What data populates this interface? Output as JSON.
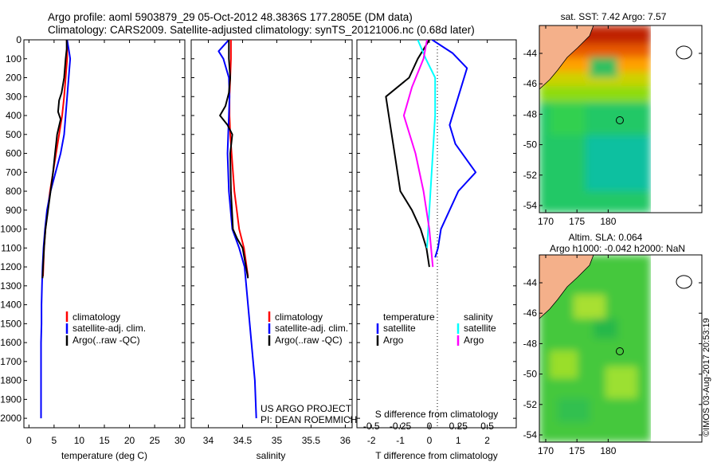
{
  "header": {
    "title_line1": "Argo profile: aoml 5903879_29 05-Oct-2012 48.3836S 177.2805E (DM data)",
    "title_line2": "Climatology: CARS2009. Satellite-adjusted climatology: synTS_20121006.nc (0.68d later)"
  },
  "colors": {
    "climatology": "#ff0000",
    "satellite": "#0000ff",
    "argo": "#000000",
    "argo_salinity_diff": "#ff00ff",
    "satellite_salinity_diff": "#00ffff",
    "land": "#f4b08a"
  },
  "chart_data": [
    {
      "type": "line",
      "name": "temperature-profile",
      "xlabel": "temperature (deg C)",
      "ylabel": "depth",
      "xlim": [
        -1,
        31
      ],
      "ylim": [
        2050,
        0
      ],
      "xticks": [
        0,
        5,
        10,
        15,
        20,
        25,
        30
      ],
      "yticks": [
        0,
        100,
        200,
        300,
        400,
        500,
        600,
        700,
        800,
        900,
        1000,
        1100,
        1200,
        1300,
        1400,
        1500,
        1600,
        1700,
        1800,
        1900,
        2000
      ],
      "legend": [
        "climatology",
        "satellite-adj. clim.",
        "Argo(..raw -QC)"
      ],
      "series": [
        {
          "name": "climatology",
          "color": "#ff0000",
          "x": [
            7.5,
            7.6,
            7.6,
            7.3,
            7.0,
            6.6,
            6.0,
            5.4,
            4.8,
            4.2,
            3.7,
            3.3,
            3.0,
            2.8
          ],
          "y": [
            0,
            50,
            100,
            200,
            300,
            400,
            500,
            600,
            700,
            800,
            900,
            1000,
            1100,
            1250
          ]
        },
        {
          "name": "satellite-adj. clim.",
          "color": "#0000ff",
          "x": [
            7.6,
            8.1,
            8.2,
            7.9,
            7.6,
            7.3,
            7.0,
            6.3,
            5.3,
            4.3,
            3.6,
            3.2,
            2.9,
            2.7,
            2.6,
            2.5,
            2.5,
            2.4,
            2.4,
            2.4,
            2.4,
            2.4
          ],
          "y": [
            0,
            80,
            100,
            200,
            300,
            400,
            500,
            600,
            700,
            800,
            900,
            1000,
            1100,
            1200,
            1300,
            1400,
            1500,
            1600,
            1700,
            1800,
            1900,
            2000
          ]
        },
        {
          "name": "Argo(..raw -QC)",
          "color": "#000000",
          "x": [
            7.5,
            7.5,
            7.3,
            7.0,
            6.5,
            6.0,
            5.8,
            6.3,
            5.6,
            5.2,
            4.8,
            4.3,
            3.8,
            3.3,
            3.0,
            2.8,
            2.7
          ],
          "y": [
            0,
            50,
            100,
            200,
            280,
            320,
            380,
            420,
            500,
            600,
            700,
            800,
            900,
            1000,
            1100,
            1200,
            1260
          ]
        }
      ]
    },
    {
      "type": "line",
      "name": "salinity-profile",
      "xlabel": "salinity",
      "xlim": [
        33.75,
        36.1
      ],
      "ylim": [
        2050,
        0
      ],
      "xticks": [
        34,
        34.5,
        35,
        35.5,
        36
      ],
      "xticklabels": [
        "34",
        "34.5",
        "35",
        "35.5",
        "36"
      ],
      "legend": [
        "climatology",
        "satellite-adj. clim.",
        "Argo(..raw -QC)"
      ],
      "annotation": [
        "US ARGO PROJECT",
        "PI: DEAN ROEMMICH"
      ],
      "series": [
        {
          "name": "climatology",
          "color": "#ff0000",
          "x": [
            34.33,
            34.33,
            34.32,
            34.31,
            34.31,
            34.32,
            34.34,
            34.38,
            34.45,
            34.52,
            34.58
          ],
          "y": [
            0,
            100,
            200,
            300,
            400,
            500,
            600,
            800,
            1000,
            1100,
            1250
          ]
        },
        {
          "name": "satellite-adj. clim.",
          "color": "#0000ff",
          "x": [
            34.3,
            34.15,
            34.22,
            34.3,
            34.31,
            34.3,
            34.28,
            34.3,
            34.35,
            34.45,
            34.53,
            34.58,
            34.63,
            34.68,
            34.7
          ],
          "y": [
            0,
            60,
            100,
            200,
            300,
            400,
            600,
            800,
            1000,
            1100,
            1200,
            1400,
            1600,
            1800,
            2000
          ]
        },
        {
          "name": "Argo(..raw -QC)",
          "color": "#000000",
          "x": [
            34.3,
            34.3,
            34.32,
            34.3,
            34.25,
            34.17,
            34.28,
            34.35,
            34.32,
            34.33,
            34.36,
            34.42,
            34.5,
            34.55,
            34.58
          ],
          "y": [
            0,
            100,
            200,
            280,
            350,
            400,
            450,
            500,
            600,
            800,
            1000,
            1050,
            1100,
            1200,
            1260
          ]
        }
      ]
    },
    {
      "type": "line",
      "name": "difference-profile",
      "xlabel": "T difference from climatology",
      "xlabel_top": "S difference from climatology",
      "t_xlim": [
        -2.5,
        3.0
      ],
      "t_xticks": [
        -2,
        -1,
        0,
        1,
        2
      ],
      "s_xticks": [
        -0.5,
        -0.25,
        0,
        0.25,
        0.5
      ],
      "ylim": [
        2050,
        0
      ],
      "legend_temperature_title": "temperature",
      "legend_salinity_title": "salinity",
      "legend_temperature": [
        "satellite",
        "Argo"
      ],
      "legend_salinity": [
        "satellite",
        "Argo"
      ],
      "series": [
        {
          "name": "temperature satellite",
          "color": "#0000ff",
          "x": [
            0.1,
            0.8,
            1.3,
            1.0,
            0.7,
            0.9,
            1.6,
            1.0,
            0.4,
            0.3,
            0.2
          ],
          "y": [
            0,
            70,
            150,
            300,
            450,
            550,
            700,
            800,
            1000,
            1100,
            1150
          ]
        },
        {
          "name": "temperature Argo",
          "color": "#000000",
          "x": [
            0.0,
            -0.4,
            -0.7,
            -1.5,
            -1.4,
            -1.2,
            -1.0,
            -0.6,
            -0.3,
            -0.1,
            0.0
          ],
          "y": [
            0,
            100,
            200,
            300,
            400,
            600,
            800,
            900,
            1000,
            1100,
            1200
          ]
        },
        {
          "name": "salinity satellite",
          "color": "#00ffff",
          "x": [
            -0.1,
            -0.03,
            0.05,
            0.05,
            0.03,
            0.01,
            -0.01,
            -0.02
          ],
          "y": [
            0,
            100,
            200,
            400,
            600,
            800,
            1000,
            1100
          ]
        },
        {
          "name": "salinity Argo",
          "color": "#ff00ff",
          "x": [
            -0.02,
            -0.05,
            -0.15,
            -0.22,
            -0.12,
            -0.05,
            0.0,
            0.03
          ],
          "y": [
            0,
            100,
            250,
            400,
            600,
            800,
            1000,
            1200
          ]
        }
      ]
    }
  ],
  "maps": {
    "sst": {
      "title": "sat. SST: 7.42 Argo: 7.57",
      "xticks": [
        "170",
        "175",
        "180"
      ],
      "yticks": [
        "-44",
        "-46",
        "-48",
        "-50",
        "-52",
        "-54"
      ]
    },
    "sla": {
      "title_line1": "Altim. SLA: 0.064",
      "title_line2": "Argo h1000: -0.042 h2000: NaN",
      "xticks": [
        "170",
        "175",
        "180"
      ],
      "yticks": [
        "-44",
        "-46",
        "-48",
        "-50",
        "-52",
        "-54"
      ]
    }
  },
  "footer": {
    "credit": "©IMOS 03-Aug-2017 20:53:19"
  }
}
